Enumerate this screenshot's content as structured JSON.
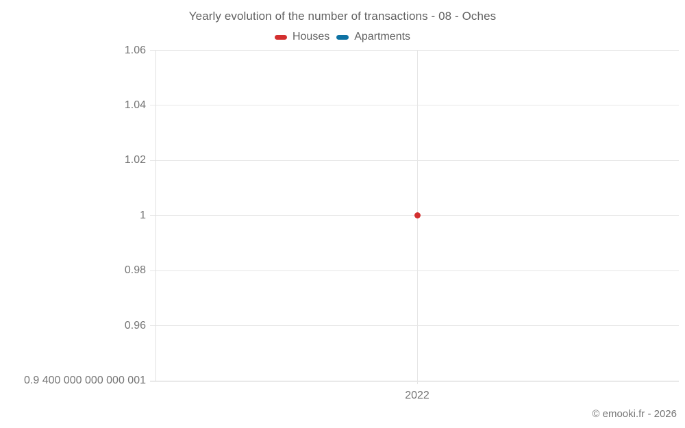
{
  "title": "Yearly evolution of the number of transactions - 08 - Oches",
  "legend": {
    "items": [
      {
        "label": "Houses",
        "color": "#d32f2f"
      },
      {
        "label": "Apartments",
        "color": "#0e72a3"
      }
    ]
  },
  "footer": {
    "copyright": "© emooki.fr - 2026"
  },
  "colors": {
    "background": "#ffffff",
    "grid": "#e6e6e6",
    "axis_bottom": "#c9c9c9",
    "axis_left": "#e0e0e0",
    "title_text": "#616161",
    "tick_text": "#757575"
  },
  "chart_data": {
    "type": "line",
    "title": "Yearly evolution of the number of transactions - 08 - Oches",
    "categories": [
      2022
    ],
    "series": [
      {
        "name": "Houses",
        "color": "#d32f2f",
        "values": [
          1
        ]
      },
      {
        "name": "Apartments",
        "color": "#0e72a3",
        "values": []
      }
    ],
    "xlabel": "",
    "ylabel": "",
    "ylim": [
      0.9400000000000001,
      1.06
    ],
    "y_ticks": [
      {
        "value": 0.9400000000000001,
        "label": "0.9 400 000 000 000 001"
      },
      {
        "value": 0.96,
        "label": "0.96"
      },
      {
        "value": 0.98,
        "label": "0.98"
      },
      {
        "value": 1,
        "label": "1"
      },
      {
        "value": 1.02,
        "label": "1.02"
      },
      {
        "value": 1.04,
        "label": "1.04"
      },
      {
        "value": 1.06,
        "label": "1.06"
      }
    ],
    "x_ticks": [
      {
        "value": 2022,
        "label": "2022"
      }
    ],
    "grid": true,
    "legend_position": "top",
    "marker": "circle"
  }
}
